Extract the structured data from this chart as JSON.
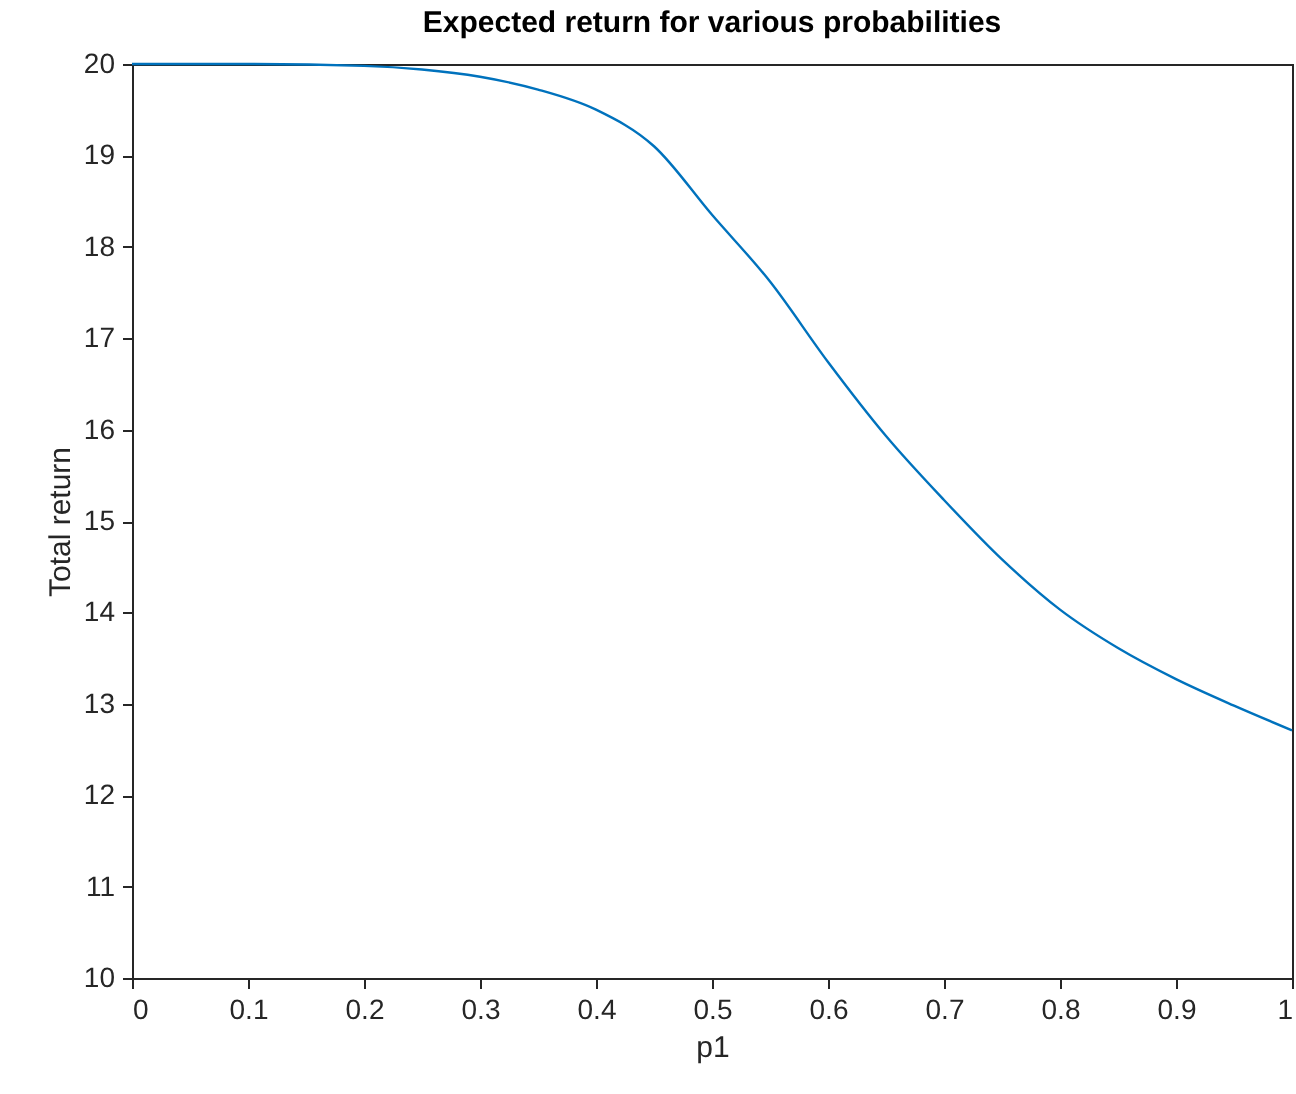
{
  "chart_data": {
    "type": "line",
    "title": "Expected return for various probabilities",
    "xlabel": "p1",
    "ylabel": "Total return",
    "x": [
      0,
      0.1,
      0.2,
      0.25,
      0.3,
      0.35,
      0.4,
      0.45,
      0.5,
      0.55,
      0.6,
      0.65,
      0.7,
      0.75,
      0.8,
      0.85,
      0.9,
      0.95,
      1
    ],
    "series": [
      {
        "color": "#0072bd",
        "values": [
          20,
          20,
          19.98,
          19.94,
          19.86,
          19.72,
          19.5,
          19.1,
          18.35,
          17.62,
          16.74,
          15.93,
          15.23,
          14.58,
          14.03,
          13.61,
          13.27,
          12.98,
          12.71
        ]
      }
    ],
    "xlim": [
      0,
      1
    ],
    "xticks": [
      0,
      0.1,
      0.2,
      0.3,
      0.4,
      0.5,
      0.6,
      0.7,
      0.8,
      0.9,
      1
    ],
    "ylim": [
      10,
      20
    ],
    "yticks": [
      10,
      11,
      12,
      13,
      14,
      15,
      16,
      17,
      18,
      19,
      20
    ],
    "grid": false,
    "marker": "none",
    "line_style": "solid"
  }
}
